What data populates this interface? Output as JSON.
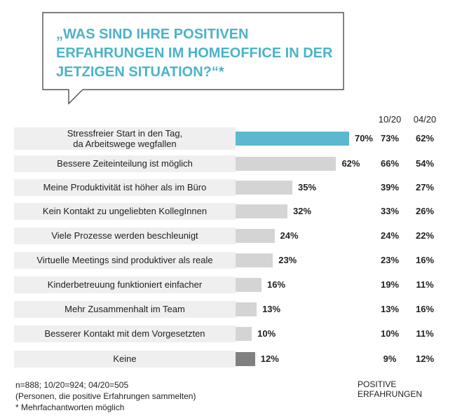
{
  "chart_data": {
    "type": "bar",
    "title": "„WAS SIND IHRE POSITIVEN ERFAHRUNGEN IM HOMEOFFICE IN DER JETZIGEN SITUATION?“*",
    "categories": [
      "Stressfreier Start in den Tag,\nda Arbeitswege wegfallen",
      "Bessere Zeiteinteilung ist möglich",
      "Meine Produktivität ist höher als im Büro",
      "Kein Kontakt zu ungeliebten KollegInnen",
      "Viele Prozesse werden beschleunigt",
      "Virtuelle Meetings sind produktiver als reale",
      "Kinderbetreuung funktioniert einfacher",
      "Mehr Zusammenhalt im Team",
      "Besserer Kontakt mit dem Vorgesetzten",
      "Keine"
    ],
    "series": [
      {
        "values": [
          70,
          62,
          35,
          32,
          24,
          23,
          16,
          13,
          10,
          12
        ],
        "value_labels": [
          "70%",
          "62%",
          "35%",
          "32%",
          "24%",
          "23%",
          "16%",
          "13%",
          "10%",
          "12%"
        ],
        "colors": [
          "#5bb8cf",
          "#d4d4d4",
          "#d4d4d4",
          "#d4d4d4",
          "#d4d4d4",
          "#d4d4d4",
          "#d4d4d4",
          "#d4d4d4",
          "#d4d4d4",
          "#808080"
        ]
      },
      {
        "name": "10/20",
        "values": [
          73,
          66,
          39,
          33,
          24,
          23,
          19,
          13,
          10,
          9
        ],
        "value_labels": [
          "73%",
          "66%",
          "39%",
          "33%",
          "24%",
          "23%",
          "19%",
          "13%",
          "10%",
          "9%"
        ]
      },
      {
        "name": "04/20",
        "values": [
          62,
          54,
          27,
          26,
          22,
          16,
          11,
          16,
          11,
          12
        ],
        "value_labels": [
          "62%",
          "54%",
          "27%",
          "26%",
          "22%",
          "16%",
          "11%",
          "16%",
          "11%",
          "12%"
        ]
      }
    ],
    "footnotes": [
      "n=888; 10/20=924; 04/20=505",
      "(Personen, die positive Erfahrungen sammelten)",
      "* Mehrfachantworten möglich"
    ],
    "legend_label": "POSITIVE ERFAHRUNGEN"
  }
}
